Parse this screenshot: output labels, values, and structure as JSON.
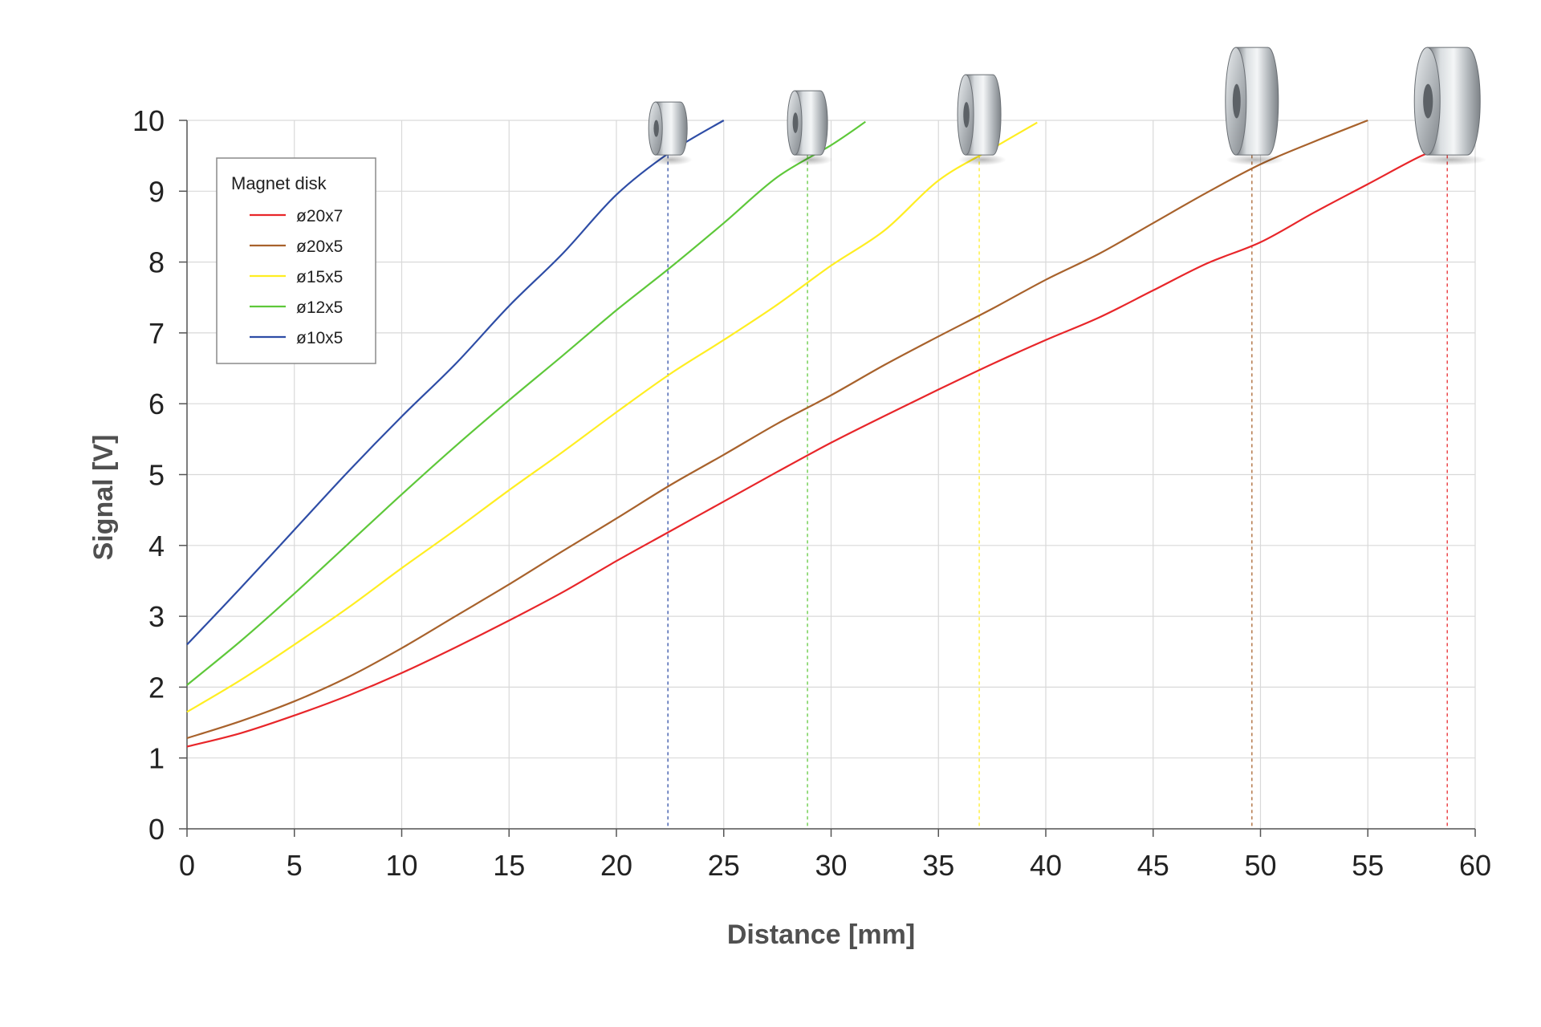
{
  "chart_data": {
    "type": "line",
    "xlabel": "Distance [mm]",
    "ylabel": "Signal [V]",
    "xlim": [
      0,
      60
    ],
    "ylim": [
      0,
      10
    ],
    "x_ticks": [
      "0",
      "5",
      "10",
      "15",
      "20",
      "25",
      "30",
      "35",
      "40",
      "45",
      "50",
      "55",
      "60"
    ],
    "y_ticks": [
      "0",
      "1",
      "2",
      "3",
      "4",
      "5",
      "6",
      "7",
      "8",
      "9",
      "10"
    ],
    "grid": true,
    "legend": {
      "title": "Magnet disk",
      "position": "top-left"
    },
    "series": [
      {
        "name": "ø20x7",
        "color": "#e8262a",
        "marker_x": 58.7,
        "points": [
          [
            0,
            1.16
          ],
          [
            2.5,
            1.35
          ],
          [
            5,
            1.6
          ],
          [
            7.5,
            1.88
          ],
          [
            10,
            2.2
          ],
          [
            12.5,
            2.56
          ],
          [
            15,
            2.94
          ],
          [
            17.5,
            3.34
          ],
          [
            20,
            3.78
          ],
          [
            22.5,
            4.2
          ],
          [
            25,
            4.62
          ],
          [
            27.5,
            5.04
          ],
          [
            30,
            5.45
          ],
          [
            32.5,
            5.83
          ],
          [
            35,
            6.2
          ],
          [
            37.5,
            6.56
          ],
          [
            40,
            6.9
          ],
          [
            42.5,
            7.22
          ],
          [
            45,
            7.6
          ],
          [
            47.5,
            7.98
          ],
          [
            50,
            8.28
          ],
          [
            52.5,
            8.7
          ],
          [
            55,
            9.1
          ],
          [
            57.5,
            9.5
          ],
          [
            58.7,
            9.62
          ],
          [
            60,
            9.82
          ]
        ]
      },
      {
        "name": "ø20x5",
        "color": "#a8622c",
        "marker_x": 49.6,
        "points": [
          [
            0,
            1.28
          ],
          [
            2.5,
            1.52
          ],
          [
            5,
            1.8
          ],
          [
            7.5,
            2.14
          ],
          [
            10,
            2.55
          ],
          [
            12.5,
            3.0
          ],
          [
            15,
            3.45
          ],
          [
            17.5,
            3.92
          ],
          [
            20,
            4.38
          ],
          [
            22.5,
            4.85
          ],
          [
            25,
            5.28
          ],
          [
            27.5,
            5.72
          ],
          [
            30,
            6.12
          ],
          [
            32.5,
            6.55
          ],
          [
            35,
            6.95
          ],
          [
            37.5,
            7.34
          ],
          [
            40,
            7.75
          ],
          [
            42.5,
            8.12
          ],
          [
            45,
            8.55
          ],
          [
            47.5,
            8.98
          ],
          [
            50,
            9.38
          ],
          [
            52.5,
            9.7
          ],
          [
            55,
            10.0
          ]
        ]
      },
      {
        "name": "ø15x5",
        "color": "#ffee22",
        "marker_x": 36.9,
        "points": [
          [
            0,
            1.65
          ],
          [
            2.5,
            2.1
          ],
          [
            5,
            2.6
          ],
          [
            7.5,
            3.12
          ],
          [
            10,
            3.68
          ],
          [
            12.5,
            4.22
          ],
          [
            15,
            4.78
          ],
          [
            17.5,
            5.32
          ],
          [
            20,
            5.88
          ],
          [
            22.5,
            6.42
          ],
          [
            25,
            6.9
          ],
          [
            27.5,
            7.4
          ],
          [
            30,
            7.95
          ],
          [
            32.5,
            8.45
          ],
          [
            35,
            9.15
          ],
          [
            37.5,
            9.6
          ],
          [
            39.6,
            9.97
          ]
        ]
      },
      {
        "name": "ø12x5",
        "color": "#5ec83a",
        "marker_x": 28.9,
        "points": [
          [
            0,
            2.03
          ],
          [
            2.5,
            2.65
          ],
          [
            5,
            3.32
          ],
          [
            7.5,
            4.02
          ],
          [
            10,
            4.72
          ],
          [
            12.5,
            5.4
          ],
          [
            15,
            6.05
          ],
          [
            17.5,
            6.68
          ],
          [
            20,
            7.32
          ],
          [
            22.5,
            7.92
          ],
          [
            25,
            8.55
          ],
          [
            27.5,
            9.2
          ],
          [
            30,
            9.65
          ],
          [
            31.6,
            9.98
          ]
        ]
      },
      {
        "name": "ø10x5",
        "color": "#2e4da6",
        "marker_x": 22.4,
        "points": [
          [
            0,
            2.6
          ],
          [
            2.5,
            3.4
          ],
          [
            5,
            4.22
          ],
          [
            7.5,
            5.04
          ],
          [
            10,
            5.82
          ],
          [
            12.5,
            6.56
          ],
          [
            15,
            7.38
          ],
          [
            17.5,
            8.12
          ],
          [
            20,
            8.95
          ],
          [
            22.5,
            9.55
          ],
          [
            25,
            10.0
          ]
        ]
      }
    ]
  },
  "disk_icon": "magnet-disk-icon"
}
